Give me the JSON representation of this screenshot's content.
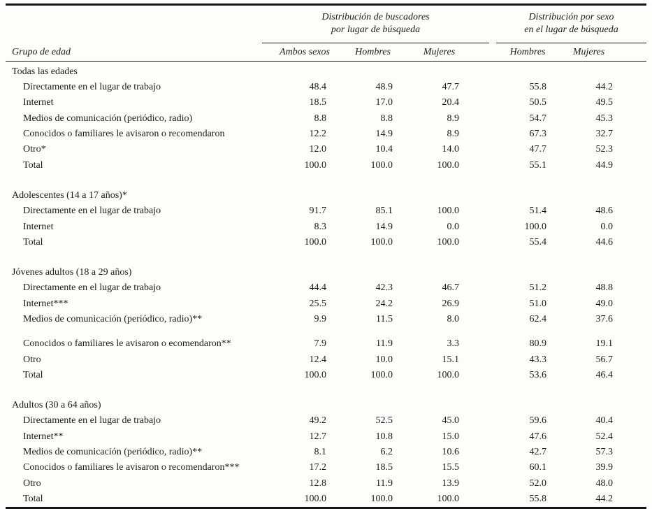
{
  "page": {
    "background": "#fdfdfc",
    "text_color": "#1b1b1b",
    "rule_color": "#161616"
  },
  "table": {
    "group_headers": [
      {
        "label": "Distribución de buscadores\npor lugar de búsqueda"
      },
      {
        "label": "Distribución por sexo\nen el lugar de búsqueda"
      }
    ],
    "row_header_label": "Grupo de edad",
    "column_headers": [
      "Ambos sexos",
      "Hombres",
      "Mujeres",
      "Hombres",
      "Mujeres"
    ],
    "sections": [
      {
        "title": "Todas las edades",
        "rows": [
          {
            "label": "Directamente en el lugar de trabajo",
            "values": [
              "48.4",
              "48.9",
              "47.7",
              "55.8",
              "44.2"
            ]
          },
          {
            "label": "Internet",
            "values": [
              "18.5",
              "17.0",
              "20.4",
              "50.5",
              "49.5"
            ]
          },
          {
            "label": "Medios de comunicación (periódico, radio)",
            "values": [
              "8.8",
              "8.8",
              "8.9",
              "54.7",
              "45.3"
            ]
          },
          {
            "label": "Conocidos o familiares le avisaron o recomendaron",
            "values": [
              "12.2",
              "14.9",
              "8.9",
              "67.3",
              "32.7"
            ]
          },
          {
            "label": "Otro*",
            "values": [
              "12.0",
              "10.4",
              "14.0",
              "47.7",
              "52.3"
            ]
          },
          {
            "label": "Total",
            "values": [
              "100.0",
              "100.0",
              "100.0",
              "55.1",
              "44.9"
            ]
          }
        ]
      },
      {
        "title": "Adolescentes (14 a 17 años)*",
        "rows": [
          {
            "label": "Directamente en el lugar de trabajo",
            "values": [
              "91.7",
              "85.1",
              "100.0",
              "51.4",
              "48.6"
            ]
          },
          {
            "label": "Internet",
            "values": [
              "8.3",
              "14.9",
              "0.0",
              "100.0",
              "0.0"
            ]
          },
          {
            "label": "Total",
            "values": [
              "100.0",
              "100.0",
              "100.0",
              "55.4",
              "44.6"
            ]
          }
        ]
      },
      {
        "title": "Jóvenes adultos (18 a 29 años)",
        "rows": [
          {
            "label": "Directamente en el lugar de trabajo",
            "values": [
              "44.4",
              "42.3",
              "46.7",
              "51.2",
              "48.8"
            ]
          },
          {
            "label": "Internet***",
            "values": [
              "25.5",
              "24.2",
              "26.9",
              "51.0",
              "49.0"
            ]
          },
          {
            "label": "Medios de comunicación (periódico, radio)**",
            "values": [
              "9.9",
              "11.5",
              "8.0",
              "62.4",
              "37.6"
            ]
          },
          {
            "label": "Conocidos o familiares le avisaron o ecomendaron**",
            "values": [
              "7.9",
              "11.9",
              "3.3",
              "80.9",
              "19.1"
            ],
            "gap_before": true
          },
          {
            "label": "Otro",
            "values": [
              "12.4",
              "10.0",
              "15.1",
              "43.3",
              "56.7"
            ]
          },
          {
            "label": "Total",
            "values": [
              "100.0",
              "100.0",
              "100.0",
              "53.6",
              "46.4"
            ]
          }
        ]
      },
      {
        "title": "Adultos (30 a 64 años)",
        "rows": [
          {
            "label": "Directamente en el lugar de trabajo",
            "values": [
              "49.2",
              "52.5",
              "45.0",
              "59.6",
              "40.4"
            ]
          },
          {
            "label": "Internet**",
            "values": [
              "12.7",
              "10.8",
              "15.0",
              "47.6",
              "52.4"
            ]
          },
          {
            "label": "Medios de comunicación (periódico, radio)**",
            "values": [
              "8.1",
              "6.2",
              "10.6",
              "42.7",
              "57.3"
            ]
          },
          {
            "label": "Conocidos o familiares le avisaron o recomendaron***",
            "values": [
              "17.2",
              "18.5",
              "15.5",
              "60.1",
              "39.9"
            ]
          },
          {
            "label": "Otro",
            "values": [
              "12.8",
              "11.9",
              "13.9",
              "52.0",
              "48.0"
            ]
          },
          {
            "label": "Total",
            "values": [
              "100.0",
              "100.0",
              "100.0",
              "55.8",
              "44.2"
            ]
          }
        ]
      }
    ]
  }
}
